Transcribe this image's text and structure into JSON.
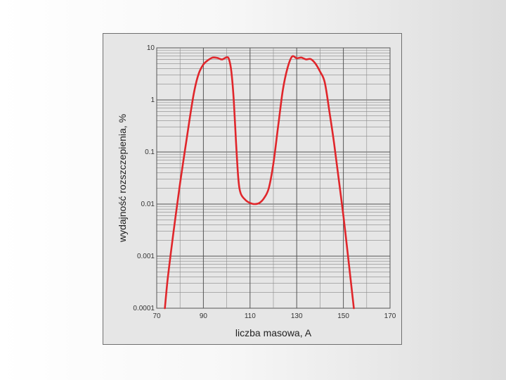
{
  "chart_data": {
    "type": "line",
    "xlabel": "liczba masowa, A",
    "ylabel": "wydajność rozszczepienia, %",
    "xlim": [
      70,
      170
    ],
    "ylim": [
      0.0001,
      10
    ],
    "y_scale": "log",
    "grid": true,
    "x_ticks": [
      "70",
      "90",
      "110",
      "130",
      "150",
      "170"
    ],
    "y_ticks": [
      "0.0001",
      "0.001",
      "0.01",
      "0.1",
      "1",
      "10"
    ],
    "series": [
      {
        "color": "#e0262b",
        "points": [
          [
            73.5,
            0.0001
          ],
          [
            74.5,
            0.0003
          ],
          [
            76,
            0.0011
          ],
          [
            78,
            0.0055
          ],
          [
            80,
            0.025
          ],
          [
            82,
            0.1
          ],
          [
            84,
            0.4
          ],
          [
            86,
            1.4
          ],
          [
            88,
            3.2
          ],
          [
            90,
            4.8
          ],
          [
            92,
            5.8
          ],
          [
            94,
            6.5
          ],
          [
            96,
            6.4
          ],
          [
            98,
            6.0
          ],
          [
            100,
            6.6
          ],
          [
            101,
            6.0
          ],
          [
            102,
            3.5
          ],
          [
            103,
            1.0
          ],
          [
            104,
            0.15
          ],
          [
            105,
            0.03
          ],
          [
            106,
            0.016
          ],
          [
            108,
            0.012
          ],
          [
            110,
            0.0105
          ],
          [
            112,
            0.01
          ],
          [
            114,
            0.0105
          ],
          [
            116,
            0.013
          ],
          [
            118,
            0.02
          ],
          [
            120,
            0.06
          ],
          [
            122,
            0.3
          ],
          [
            124,
            1.5
          ],
          [
            126,
            4.0
          ],
          [
            128,
            6.8
          ],
          [
            130,
            6.3
          ],
          [
            132,
            6.5
          ],
          [
            134,
            6.0
          ],
          [
            136,
            6.1
          ],
          [
            138,
            5.0
          ],
          [
            140,
            3.5
          ],
          [
            142,
            2.2
          ],
          [
            144,
            0.6
          ],
          [
            146,
            0.15
          ],
          [
            148,
            0.03
          ],
          [
            150,
            0.006
          ],
          [
            152,
            0.001
          ],
          [
            153.5,
            0.00025
          ],
          [
            154.5,
            0.0001
          ]
        ]
      }
    ]
  }
}
